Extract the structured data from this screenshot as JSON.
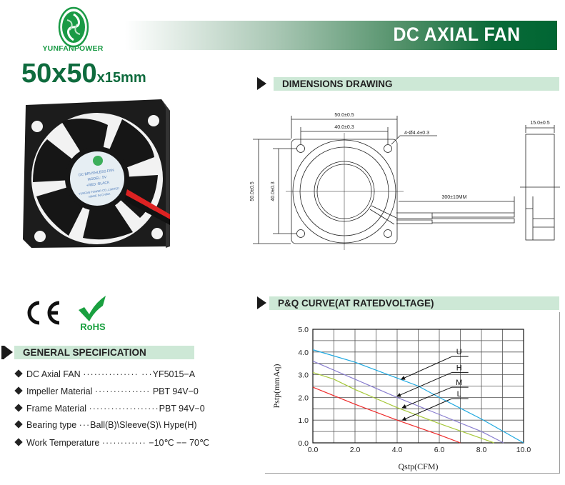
{
  "brand": {
    "name": "YUNFANPOWER",
    "logo_lettering": "YUNFANPOWER"
  },
  "header": {
    "title": "DC AXIAL FAN",
    "size_main": "50x50",
    "size_suffix": "x15mm",
    "accent": "#006633"
  },
  "sections": {
    "dimensions": "DIMENSIONS DRAWING",
    "pq": "P&Q CURVE(AT RATEDVOLTAGE)",
    "general": "GENERAL SPECIFICATION"
  },
  "photo_label": {
    "line1": "DC BRUSHLESS FAN",
    "line2": "MODEL: 5V",
    "line3": "+RED -BLACK",
    "line4": "YUNFAN POWER CO.,LIMITED",
    "line5": "MADE IN CHINA"
  },
  "drawing": {
    "width_outer": "50.0±0.5",
    "width_inner": "40.0±0.3",
    "hole": "4-Ø4.4±0.3",
    "height_outer": "50.0±0.5",
    "height_inner": "40.0±0.3",
    "lead": "300±10MM",
    "depth": "15.0±0.5"
  },
  "certs": {
    "ce": "CE",
    "rohs": "RoHS"
  },
  "specs": [
    {
      "label": "DC Axial FAN",
      "dots": "··············· ···",
      "value": "YF5015−A"
    },
    {
      "label": "Impeller Material",
      "dots": "···············",
      "value": "PBT 94V−0"
    },
    {
      "label": "Frame Material",
      "dots": "···················",
      "value": "PBT 94V−0"
    },
    {
      "label": "Bearing type",
      "dots": "···",
      "value": "Ball(B)\\Sleeve(S)\\ Hype(H)"
    },
    {
      "label": "Work Temperature",
      "dots": "············",
      "value": "−10℃ −− 70℃"
    }
  ],
  "chart_data": {
    "type": "line",
    "title": "",
    "xlabel": "Qstp(CFM)",
    "ylabel": "Pstp(mmAq)",
    "xlim": [
      0,
      10
    ],
    "ylim": [
      0,
      5
    ],
    "xticks": [
      "0.0",
      "2.0",
      "4.0",
      "6.0",
      "8.0",
      "10.0"
    ],
    "yticks": [
      "0.0",
      "1.0",
      "2.0",
      "3.0",
      "4.0",
      "5.0"
    ],
    "grid": true,
    "series": [
      {
        "name": "U",
        "color": "#1ea8e0",
        "x": [
          0,
          2,
          4,
          5,
          6,
          8,
          10
        ],
        "y": [
          4.1,
          3.55,
          2.85,
          2.5,
          2.0,
          1.05,
          0
        ]
      },
      {
        "name": "H",
        "color": "#8a7fd0",
        "x": [
          0,
          2,
          4,
          6,
          8,
          9.05
        ],
        "y": [
          3.6,
          2.8,
          2.0,
          1.25,
          0.5,
          0
        ]
      },
      {
        "name": "M",
        "color": "#a6c83a",
        "x": [
          0,
          1,
          2,
          4,
          6,
          8,
          8.6
        ],
        "y": [
          3.1,
          2.8,
          2.35,
          1.55,
          0.85,
          0.2,
          0
        ]
      },
      {
        "name": "L",
        "color": "#ee2a2a",
        "x": [
          0,
          2,
          4,
          6,
          7
        ],
        "y": [
          2.45,
          1.7,
          1.0,
          0.35,
          0
        ]
      }
    ],
    "annotations": [
      {
        "text": "U",
        "label_at": [
          6.6,
          3.8
        ],
        "arrow_to": [
          4.2,
          2.8
        ]
      },
      {
        "text": "H",
        "label_at": [
          6.6,
          3.1
        ],
        "arrow_to": [
          4.0,
          2.05
        ]
      },
      {
        "text": "M",
        "label_at": [
          6.6,
          2.45
        ],
        "arrow_to": [
          4.25,
          1.55
        ]
      },
      {
        "text": "L",
        "label_at": [
          6.6,
          1.95
        ],
        "arrow_to": [
          4.25,
          1.0
        ]
      }
    ]
  }
}
